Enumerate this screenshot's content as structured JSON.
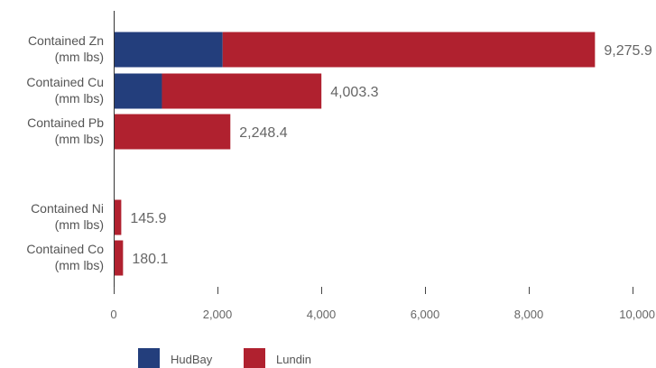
{
  "chart_data": {
    "type": "bar",
    "orientation": "horizontal",
    "stacked": true,
    "categories": [
      [
        "Contained Zn",
        "(mm lbs)"
      ],
      [
        "Contained Cu",
        "(mm lbs)"
      ],
      [
        "Contained Pb",
        "(mm lbs)"
      ],
      [
        "Contained Ni",
        "(mm lbs)"
      ],
      [
        "Contained Co",
        "(mm lbs)"
      ]
    ],
    "series": [
      {
        "name": "HudBay",
        "color": "#233e7c",
        "values": [
          2100,
          930,
          0,
          0,
          0
        ]
      },
      {
        "name": "Lundin",
        "color": "#b0212f",
        "values": [
          7175.9,
          3073.3,
          2248.4,
          145.9,
          180.1
        ]
      }
    ],
    "data_labels": [
      "9,275.9",
      "4,003.3",
      "2,248.4",
      "145.9",
      "180.1"
    ],
    "xlim": [
      0,
      10000
    ],
    "xticks": [
      0,
      2000,
      4000,
      6000,
      8000,
      10000
    ],
    "xtick_labels": [
      "0",
      "2,000",
      "4,000",
      "6,000",
      "8,000",
      "10,000"
    ],
    "legend_position": "bottom-left",
    "grid": false
  }
}
